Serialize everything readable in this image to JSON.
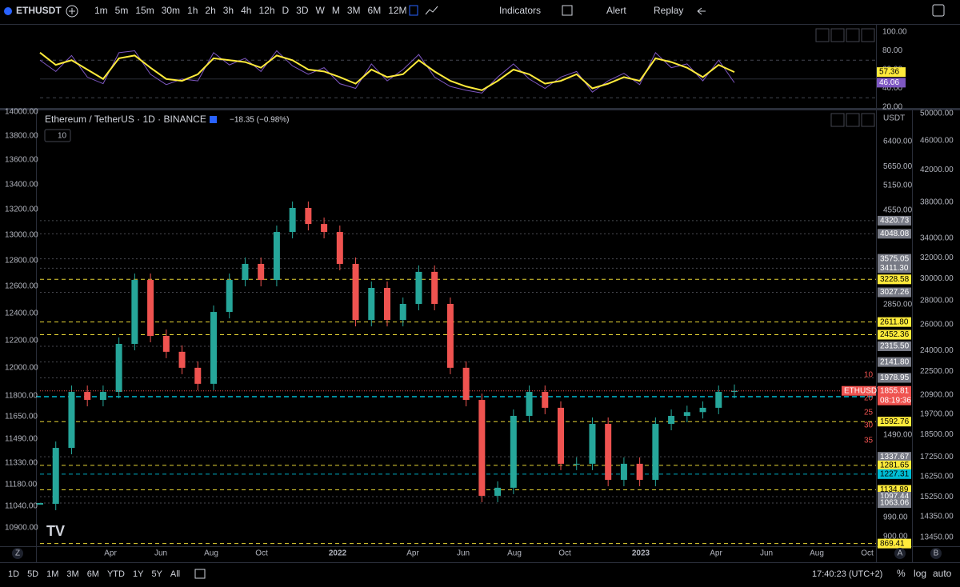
{
  "toolbar": {
    "symbol": "ETHUSDT",
    "intervals": [
      "1m",
      "5m",
      "15m",
      "30m",
      "1h",
      "2h",
      "3h",
      "4h",
      "12h",
      "D",
      "3D",
      "W",
      "M",
      "3M",
      "6M",
      "12M"
    ],
    "indicators": "Indicators",
    "alert": "Alert",
    "replay": "Replay"
  },
  "indicator_pane": {
    "axis_labels": [
      "100.00",
      "80.00",
      "60.00",
      "40.00",
      "20.00"
    ],
    "rsi": [
      70,
      58,
      75,
      52,
      45,
      78,
      80,
      55,
      44,
      50,
      48,
      78,
      65,
      72,
      58,
      80,
      64,
      55,
      62,
      45,
      40,
      66,
      48,
      60,
      76,
      52,
      42,
      38,
      35,
      52,
      66,
      50,
      40,
      52,
      58,
      36,
      48,
      56,
      44,
      78,
      62,
      66,
      48,
      70,
      46.06
    ],
    "rsi_ma": [
      78,
      65,
      70,
      60,
      50,
      72,
      75,
      62,
      50,
      48,
      55,
      72,
      70,
      68,
      62,
      75,
      70,
      60,
      58,
      52,
      45,
      60,
      52,
      55,
      70,
      58,
      48,
      42,
      38,
      48,
      60,
      55,
      45,
      48,
      55,
      40,
      45,
      52,
      48,
      72,
      68,
      62,
      52,
      65,
      57.36
    ],
    "rsi_ma_label": "57.36",
    "rsi_label": "46.06"
  },
  "main_chart": {
    "legend": "Ethereum / TetherUS · 1D · BINANCE",
    "change": "−18.35 (−0.98%)",
    "interval_count": "10",
    "currency": "USDT",
    "left_axis": [
      "14000.00",
      "13800.00",
      "13600.00",
      "13400.00",
      "13200.00",
      "13000.00",
      "12800.00",
      "12600.00",
      "12400.00",
      "12200.00",
      "12000.00",
      "11800.00",
      "11650.00",
      "11490.00",
      "11330.00",
      "11180.00",
      "11040.00",
      "10900.00"
    ],
    "price_axis": [
      "6400.00",
      "5650.00",
      "5150.00",
      "4550.00",
      "2850.00",
      "1490.00",
      "990.00",
      "900.00"
    ],
    "outer_axis": [
      "50000.00",
      "46000.00",
      "42000.00",
      "38000.00",
      "34000.00",
      "32000.00",
      "30000.00",
      "28000.00",
      "26000.00",
      "24000.00",
      "22500.00",
      "20900.00",
      "19700.00",
      "18500.00",
      "17250.00",
      "16250.00",
      "15250.00",
      "14350.00",
      "13450.00"
    ],
    "time_axis": [
      "Apr",
      "Jun",
      "Aug",
      "Oct",
      "2022",
      "Apr",
      "Jun",
      "Aug",
      "Oct",
      "2023",
      "Apr",
      "Jun",
      "Aug",
      "Oct"
    ],
    "closes": [
      1059,
      1398,
      1846,
      1774,
      1846,
      2343,
      3219,
      2438,
      2253,
      2081,
      1922,
      2746,
      3219,
      3486,
      3219,
      4085,
      4603,
      4250,
      4085,
      3486,
      2639,
      3094,
      2639,
      2858,
      3351,
      2858,
      2081,
      1774,
      1102,
      1147,
      1639,
      1846,
      1706,
      1292,
      1292,
      1575,
      1193,
      1292,
      1193,
      1575,
      1639,
      1670,
      1706,
      1846,
      1856
    ],
    "levels": [
      {
        "label": "4320.73",
        "color": "#787b86"
      },
      {
        "label": "4048.08",
        "color": "#787b86"
      },
      {
        "label": "3575.05",
        "color": "#787b86"
      },
      {
        "label": "3411.30",
        "color": "#787b86"
      },
      {
        "label": "3228.58",
        "color": "#ffeb3b"
      },
      {
        "label": "3027.26",
        "color": "#787b86"
      },
      {
        "label": "2611.80",
        "color": "#ffeb3b"
      },
      {
        "label": "2452.36",
        "color": "#ffeb3b"
      },
      {
        "label": "2315.50",
        "color": "#787b86"
      },
      {
        "label": "2141.80",
        "color": "#787b86"
      },
      {
        "label": "1978.95",
        "color": "#787b86"
      },
      {
        "label": "1592.76",
        "color": "#ffeb3b"
      },
      {
        "label": "1337.67",
        "color": "#787b86"
      },
      {
        "label": "1281.65",
        "color": "#ffeb3b"
      },
      {
        "label": "1227.31",
        "color": "#00bcd4"
      },
      {
        "label": "1134.89",
        "color": "#ffeb3b"
      },
      {
        "label": "1097.44",
        "color": "#787b86"
      },
      {
        "label": "1063.06",
        "color": "#787b86"
      },
      {
        "label": "869.41",
        "color": "#ffeb3b"
      }
    ],
    "last_price": {
      "symbol": "ETHUSDT",
      "price": "1855.81",
      "countdown": "08:19:36"
    },
    "ma_labels": [
      "10",
      "20",
      "25",
      "30",
      "35"
    ]
  },
  "corner_labels": [
    "Z",
    "A",
    "B"
  ],
  "bottom_bar": {
    "ranges": [
      "1D",
      "5D",
      "1M",
      "3M",
      "6M",
      "YTD",
      "1Y",
      "5Y",
      "All"
    ],
    "time": "17:40:23 (UTC+2)",
    "percent": "%",
    "log": "log",
    "auto": "auto"
  }
}
